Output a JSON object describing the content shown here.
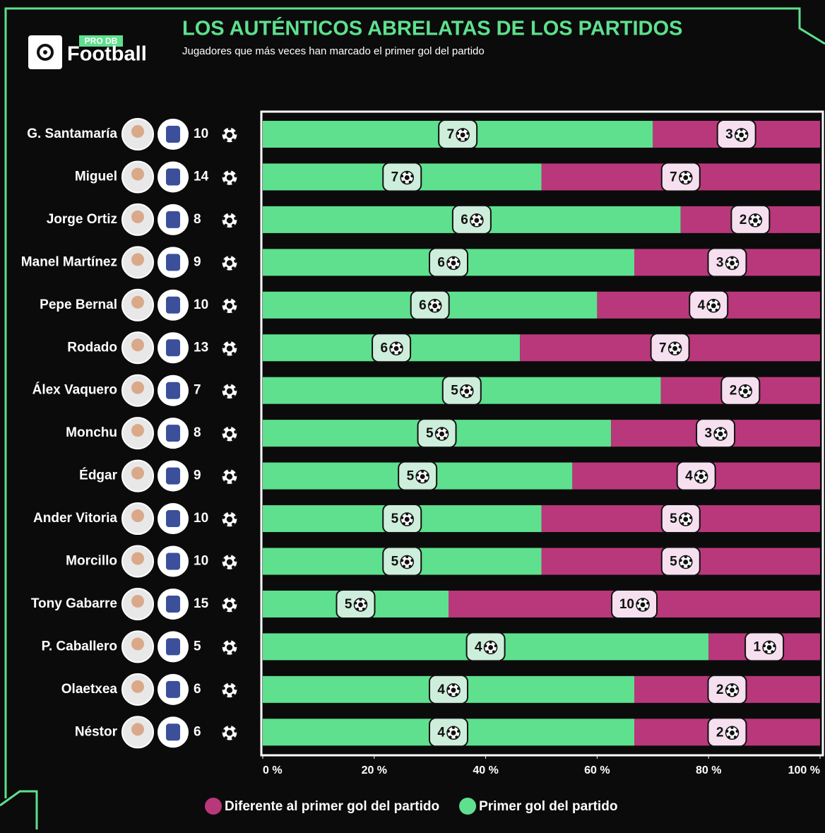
{
  "chart_data": {
    "type": "bar",
    "title": "LOS AUTÉNTICOS ABRELATAS DE LOS PARTIDOS",
    "subtitle": "Jugadores que más veces han marcado el primer gol del partido",
    "logo": {
      "small": "PRO DB",
      "main": "Football"
    },
    "orientation": "horizontal",
    "stacked": "percent",
    "categories": [
      "G. Santamaría",
      "Miguel",
      "Jorge Ortiz",
      "Manel Martínez",
      "Pepe Bernal",
      "Rodado",
      "Álex Vaquero",
      "Monchu",
      "Édgar",
      "Ander Vitoria",
      "Morcillo",
      "Tony Gabarre",
      "P. Caballero",
      "Olaetxea",
      "Néstor"
    ],
    "totals": [
      10,
      14,
      8,
      9,
      10,
      13,
      7,
      8,
      9,
      10,
      10,
      15,
      5,
      6,
      6
    ],
    "series": [
      {
        "name": "Primer gol del partido",
        "color": "#5ee08e",
        "label_color": "#cdeedb",
        "values": [
          7,
          7,
          6,
          6,
          6,
          6,
          5,
          5,
          5,
          5,
          5,
          5,
          4,
          4,
          4
        ]
      },
      {
        "name": "Diferente al primer gol del partido",
        "color": "#b9387b",
        "label_color": "#f6e0ef",
        "values": [
          3,
          7,
          2,
          3,
          4,
          7,
          2,
          3,
          4,
          5,
          5,
          10,
          1,
          2,
          2
        ]
      }
    ],
    "xlim": [
      0,
      100
    ],
    "xticks": [
      {
        "value": 0,
        "label": "0 %"
      },
      {
        "value": 20,
        "label": "20 %"
      },
      {
        "value": 40,
        "label": "40 %"
      },
      {
        "value": 60,
        "label": "60 %"
      },
      {
        "value": 80,
        "label": "80 %"
      },
      {
        "value": 100,
        "label": "100 %"
      }
    ]
  }
}
